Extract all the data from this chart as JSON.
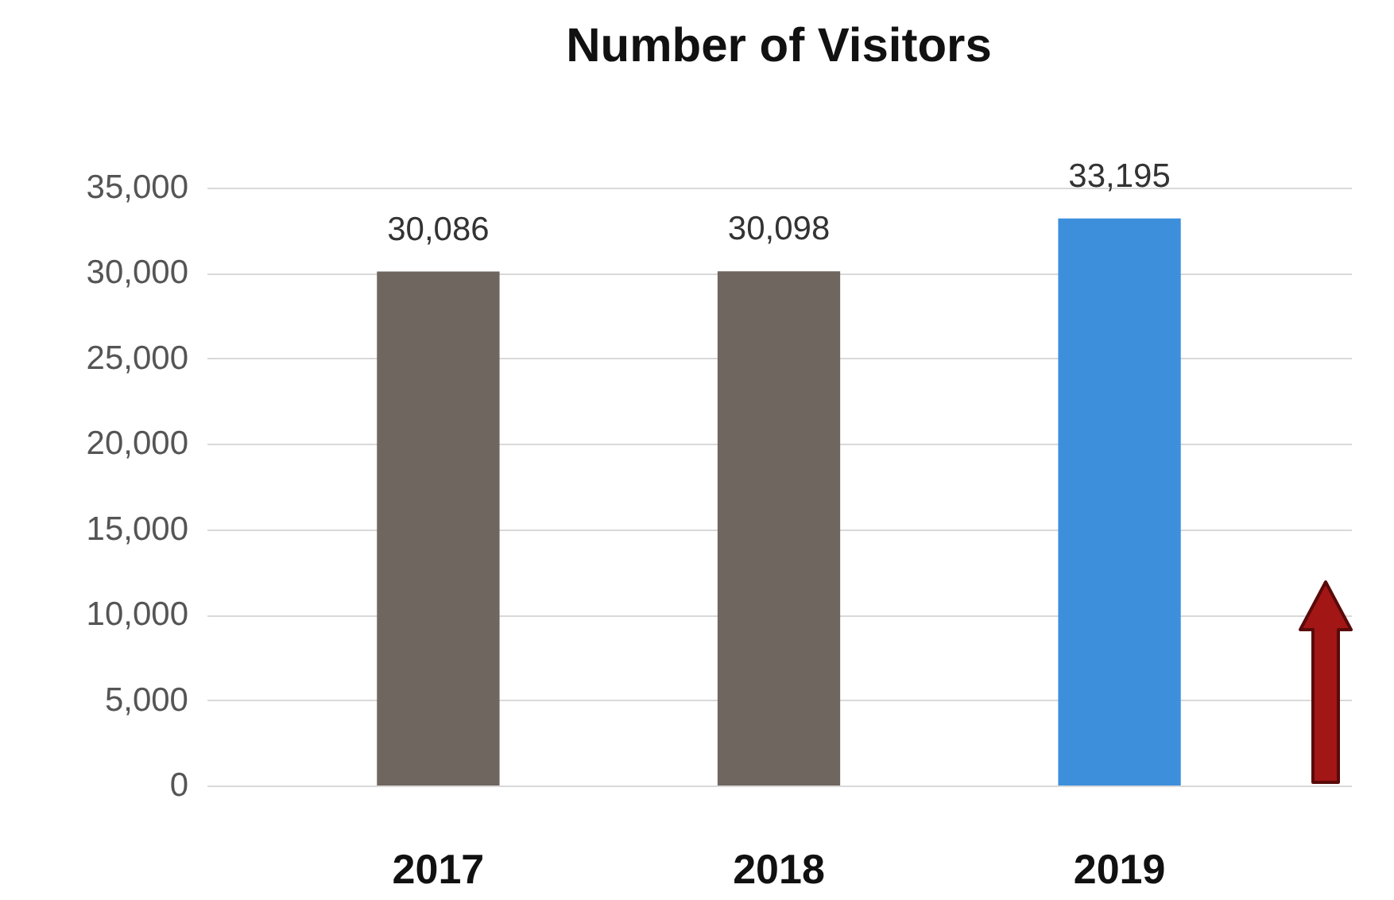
{
  "chart_data": {
    "type": "bar",
    "title": "Number of Visitors",
    "categories": [
      "2017",
      "2018",
      "2019"
    ],
    "values": [
      30086,
      30098,
      33195
    ],
    "colors": [
      "#6f665f",
      "#6f665f",
      "#3d8fdc"
    ],
    "ylim": [
      0,
      35000
    ],
    "yticks": [
      {
        "value": 0,
        "label": "0"
      },
      {
        "value": 5000,
        "label": "5,000"
      },
      {
        "value": 10000,
        "label": "10,000"
      },
      {
        "value": 15000,
        "label": "15,000"
      },
      {
        "value": 20000,
        "label": "20,000"
      },
      {
        "value": 25000,
        "label": "25,000"
      },
      {
        "value": 30000,
        "label": "30,000"
      },
      {
        "value": 35000,
        "label": "35,000"
      }
    ],
    "grid": "y",
    "value_labels": [
      "30,086",
      "30,098",
      "33,195"
    ]
  }
}
